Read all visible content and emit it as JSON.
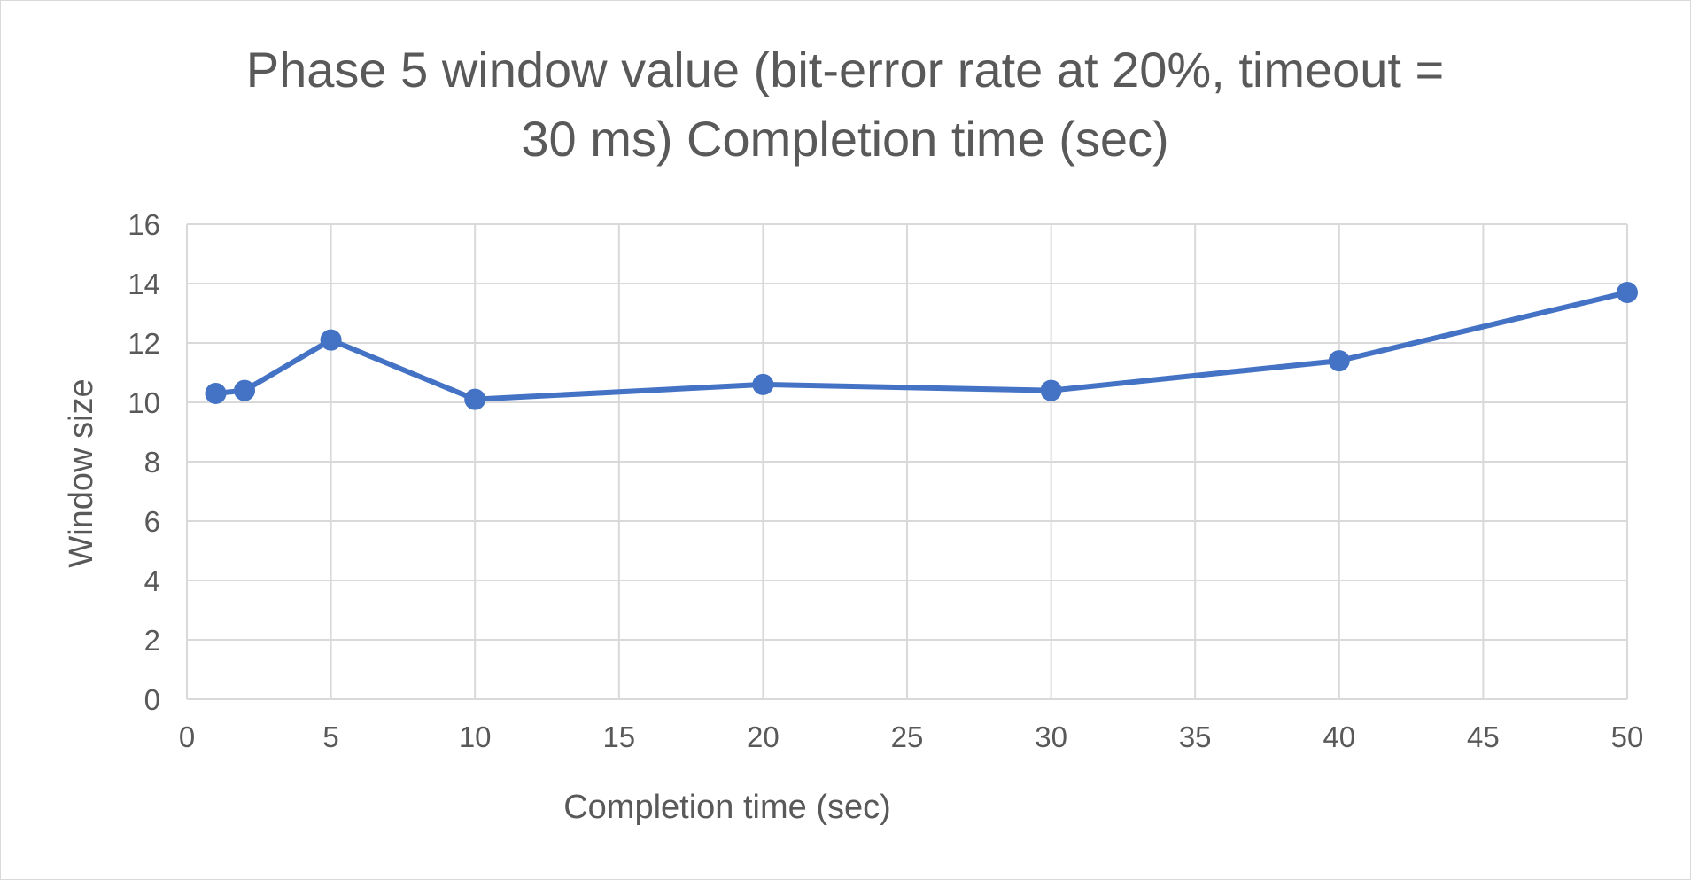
{
  "chart_data": {
    "type": "scatter",
    "title_lines": [
      "Phase 5 window value (bit-error rate at 20%, timeout =",
      "30 ms) Completion time (sec)"
    ],
    "xlabel": "Completion time (sec)",
    "ylabel": "Window size",
    "xlim": [
      0,
      50
    ],
    "ylim": [
      0,
      16
    ],
    "x_ticks": [
      0,
      5,
      10,
      15,
      20,
      25,
      30,
      35,
      40,
      45,
      50
    ],
    "y_ticks": [
      0,
      2,
      4,
      6,
      8,
      10,
      12,
      14,
      16
    ],
    "grid": true,
    "legend": "none",
    "series": [
      {
        "color": "#4472c4",
        "points": [
          {
            "x": 1,
            "y": 10.3
          },
          {
            "x": 2,
            "y": 10.4
          },
          {
            "x": 5,
            "y": 12.1
          },
          {
            "x": 10,
            "y": 10.1
          },
          {
            "x": 20,
            "y": 10.6
          },
          {
            "x": 30,
            "y": 10.4
          },
          {
            "x": 40,
            "y": 11.4
          },
          {
            "x": 50,
            "y": 13.7
          }
        ]
      }
    ]
  }
}
